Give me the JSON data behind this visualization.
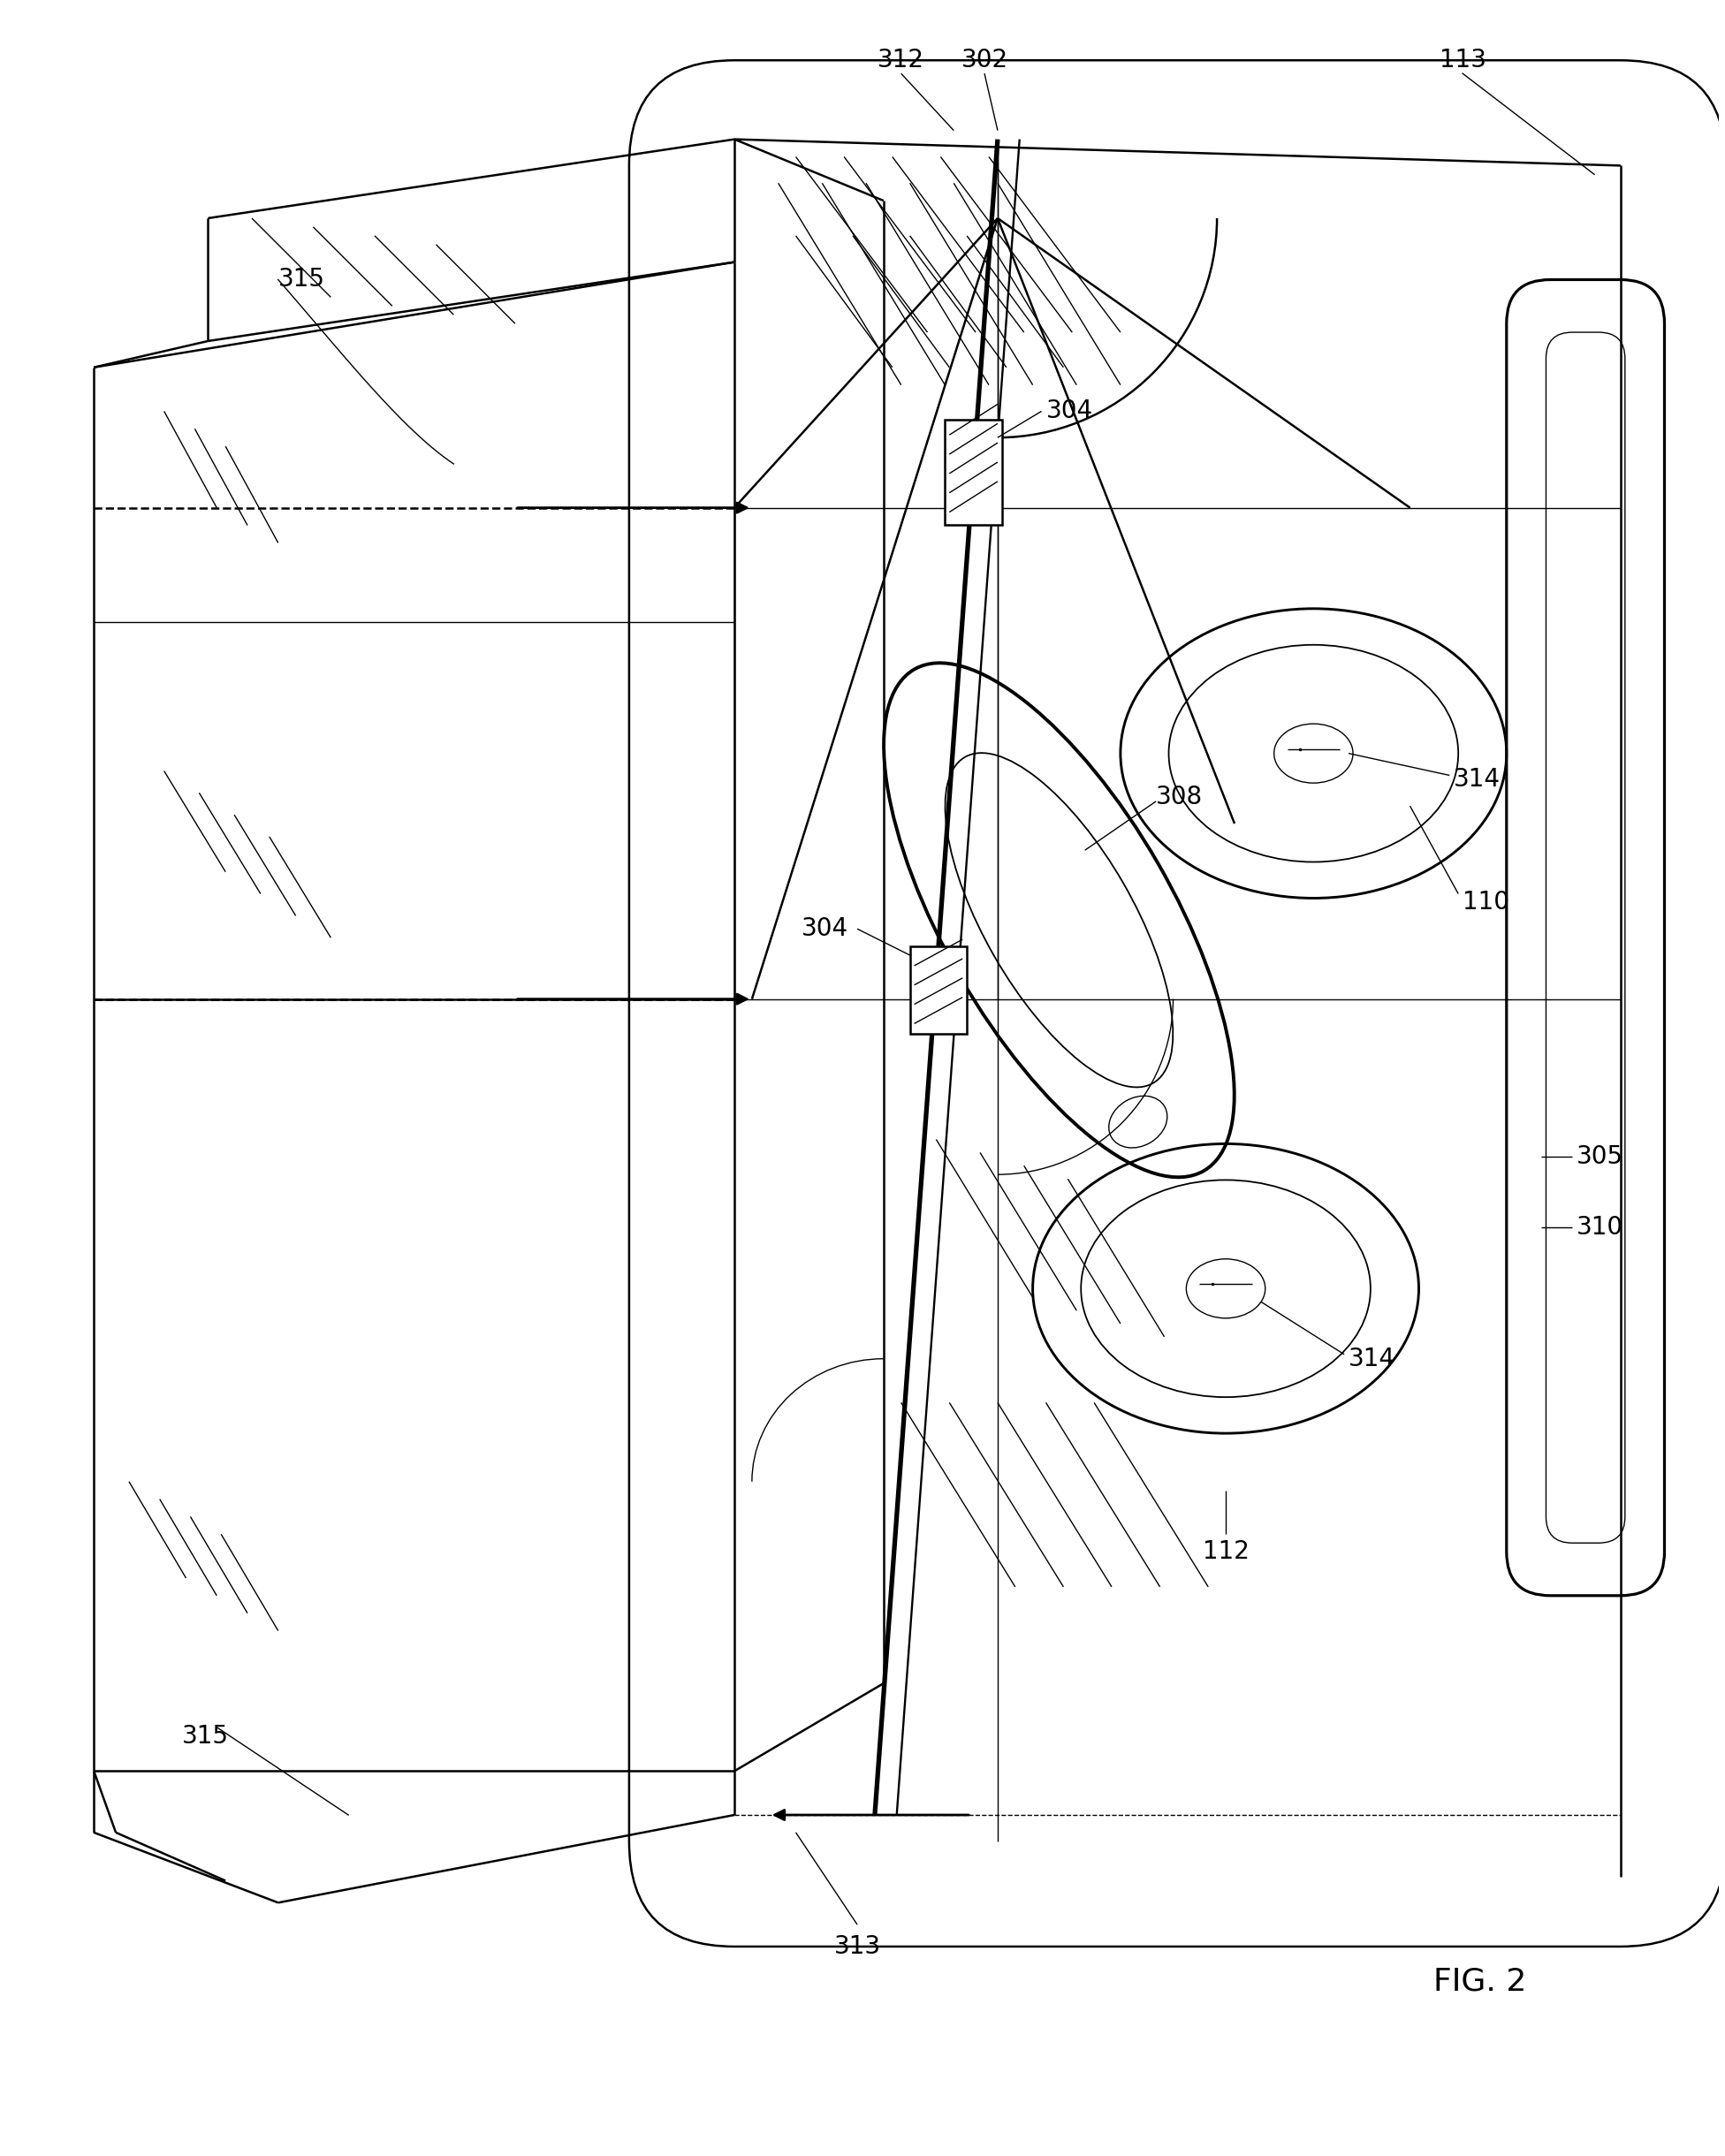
{
  "fig_label": "FIG. 2",
  "background_color": "#ffffff",
  "line_color": "#000000",
  "fontsize": 20,
  "lw_main": 1.8,
  "lw_thin": 1.0,
  "lw_thick": 2.8
}
